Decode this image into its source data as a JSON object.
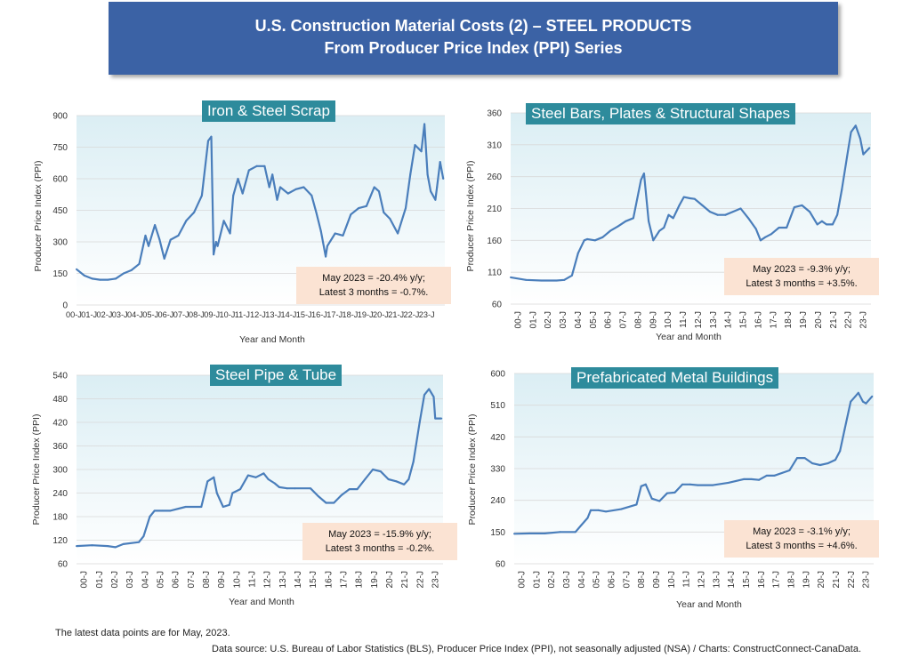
{
  "header": {
    "title_line1": "U.S. Construction Material Costs (2) – STEEL PRODUCTS",
    "title_line2": "From Producer Price Index (PPI) Series"
  },
  "footer": {
    "latest": "The latest data points are for May, 2023.",
    "source": "Data source: U.S. Bureau of Labor Statistics (BLS), Producer Price Index (PPI), not seasonally adjusted (NSA) / Charts: ConstructConnect-CanaData."
  },
  "colors": {
    "line": "#4a7ebb",
    "title_bg": "#2e8b9c",
    "note_bg": "#fbe3d3",
    "banner_bg": "#3b62a5"
  },
  "chart_data": [
    {
      "type": "line",
      "title": "Iron & Steel Scrap",
      "xlabel": "Year and Month",
      "ylabel": "Producer Price Index (PPI)",
      "ylim": [
        0,
        900
      ],
      "yticks": [
        "0",
        "150",
        "300",
        "450",
        "600",
        "750",
        "900"
      ],
      "xtick_labels": [
        "00-J",
        "01-J",
        "02-J",
        "03-J",
        "04-J",
        "05-J",
        "06-J",
        "07-J",
        "08-J",
        "09-J",
        "10-J",
        "11-J",
        "12-J",
        "13-J",
        "14-J",
        "15-J",
        "16-J",
        "17-J",
        "18-J",
        "19-J",
        "20-J",
        "21-J",
        "22-J",
        "23-J"
      ],
      "xtick_rotated": false,
      "note_line1": "May 2023 = -20.4% y/y;",
      "note_line2": "Latest 3 months = -0.7%.",
      "x": [
        2000,
        2000.5,
        2001,
        2001.5,
        2002,
        2002.5,
        2003,
        2003.5,
        2004,
        2004.4,
        2004.6,
        2005,
        2005.3,
        2005.6,
        2006,
        2006.5,
        2007,
        2007.5,
        2008,
        2008.4,
        2008.6,
        2008.75,
        2008.9,
        2009,
        2009.4,
        2009.8,
        2010,
        2010.3,
        2010.6,
        2011,
        2011.5,
        2012,
        2012.3,
        2012.5,
        2012.8,
        2013,
        2013.5,
        2014,
        2014.5,
        2015,
        2015.3,
        2015.6,
        2015.9,
        2016,
        2016.5,
        2017,
        2017.5,
        2018,
        2018.5,
        2019,
        2019.3,
        2019.6,
        2020,
        2020.5,
        2021,
        2021.3,
        2021.6,
        2022,
        2022.2,
        2022.4,
        2022.6,
        2022.9,
        2023,
        2023.2,
        2023.4
      ],
      "y": [
        170,
        140,
        125,
        120,
        120,
        125,
        150,
        165,
        195,
        330,
        280,
        380,
        310,
        220,
        310,
        330,
        400,
        440,
        520,
        780,
        800,
        240,
        300,
        280,
        400,
        340,
        520,
        600,
        530,
        640,
        660,
        660,
        560,
        620,
        500,
        560,
        530,
        550,
        560,
        520,
        440,
        350,
        230,
        280,
        340,
        330,
        430,
        460,
        470,
        560,
        540,
        440,
        410,
        340,
        460,
        620,
        760,
        730,
        860,
        620,
        540,
        500,
        560,
        680,
        600
      ]
    },
    {
      "type": "line",
      "title": "Steel Bars, Plates & Structural Shapes",
      "xlabel": "Year and Month",
      "ylabel": "Producer Price Index (PPI)",
      "ylim": [
        60,
        360
      ],
      "yticks": [
        "60",
        "110",
        "160",
        "210",
        "260",
        "310",
        "360"
      ],
      "xtick_labels": [
        "00-J",
        "01-J",
        "02-J",
        "03-J",
        "04-J",
        "05-J",
        "06-J",
        "07-J",
        "08-J",
        "09-J",
        "10-J",
        "11-J",
        "12-J",
        "13-J",
        "14-J",
        "15-J",
        "16-J",
        "17-J",
        "18-J",
        "19-J",
        "20-J",
        "21-J",
        "22-J",
        "23-J"
      ],
      "xtick_rotated": true,
      "note_line1": "May 2023 = -9.3% y/y;",
      "note_line2": "Latest 3 months = +3.5%.",
      "x": [
        2000,
        2001,
        2002,
        2003,
        2003.5,
        2004,
        2004.4,
        2004.8,
        2005,
        2005.5,
        2006,
        2006.5,
        2007,
        2007.5,
        2008,
        2008.5,
        2008.7,
        2009,
        2009.3,
        2009.7,
        2010,
        2010.3,
        2010.6,
        2011,
        2011.3,
        2011.7,
        2012,
        2012.5,
        2013,
        2013.5,
        2014,
        2014.5,
        2015,
        2015.5,
        2016,
        2016.3,
        2016.6,
        2017,
        2017.5,
        2018,
        2018.5,
        2019,
        2019.5,
        2020,
        2020.3,
        2020.6,
        2021,
        2021.3,
        2021.6,
        2022,
        2022.2,
        2022.5,
        2022.8,
        2023,
        2023.4
      ],
      "y": [
        102,
        98,
        97,
        97,
        98,
        105,
        140,
        160,
        162,
        160,
        165,
        175,
        182,
        190,
        195,
        255,
        265,
        190,
        160,
        175,
        180,
        200,
        195,
        215,
        228,
        226,
        225,
        215,
        205,
        200,
        200,
        205,
        210,
        195,
        178,
        160,
        165,
        170,
        180,
        180,
        212,
        215,
        205,
        185,
        190,
        185,
        185,
        200,
        240,
        300,
        330,
        340,
        320,
        295,
        305
      ]
    },
    {
      "type": "line",
      "title": "Steel Pipe & Tube",
      "xlabel": "Year and Month",
      "ylabel": "Producer Price Index (PPI)",
      "ylim": [
        60,
        540
      ],
      "yticks": [
        "60",
        "120",
        "180",
        "240",
        "300",
        "360",
        "420",
        "480",
        "540"
      ],
      "xtick_labels": [
        "00-J",
        "01-J",
        "02-J",
        "03-J",
        "04-J",
        "05-J",
        "06-J",
        "07-J",
        "08-J",
        "09-J",
        "10-J",
        "11-J",
        "12-J",
        "13-J",
        "14-J",
        "15-J",
        "16-J",
        "17-J",
        "18-J",
        "19-J",
        "20-J",
        "21-J",
        "22-J",
        "23-J"
      ],
      "xtick_rotated": true,
      "note_line1": "May 2023 = -15.9% y/y;",
      "note_line2": "Latest 3 months = -0.2%.",
      "x": [
        2000,
        2001,
        2002,
        2002.5,
        2003,
        2004,
        2004.3,
        2004.7,
        2005,
        2005.5,
        2006,
        2007,
        2008,
        2008.4,
        2008.8,
        2009,
        2009.4,
        2009.8,
        2010,
        2010.5,
        2011,
        2011.5,
        2012,
        2012.3,
        2012.7,
        2013,
        2013.5,
        2014,
        2015,
        2015.5,
        2016,
        2016.5,
        2017,
        2017.5,
        2018,
        2018.5,
        2019,
        2019.5,
        2020,
        2020.5,
        2021,
        2021.3,
        2021.6,
        2022,
        2022.3,
        2022.6,
        2022.9,
        2023,
        2023.4
      ],
      "y": [
        105,
        107,
        105,
        102,
        110,
        115,
        130,
        180,
        195,
        195,
        195,
        205,
        205,
        270,
        280,
        240,
        205,
        210,
        240,
        250,
        285,
        280,
        290,
        275,
        265,
        255,
        252,
        252,
        252,
        232,
        215,
        215,
        235,
        250,
        250,
        275,
        300,
        295,
        275,
        270,
        262,
        275,
        320,
        420,
        490,
        505,
        485,
        430,
        430
      ]
    },
    {
      "type": "line",
      "title": "Prefabricated Metal Buildings",
      "xlabel": "Year and Month",
      "ylabel": "Producer Price Index (PPI)",
      "ylim": [
        60,
        600
      ],
      "yticks": [
        "60",
        "150",
        "240",
        "330",
        "420",
        "510",
        "600"
      ],
      "xtick_labels": [
        "00-J",
        "01-J",
        "02-J",
        "03-J",
        "04-J",
        "05-J",
        "06-J",
        "07-J",
        "08-J",
        "09-J",
        "10-J",
        "11-J",
        "12-J",
        "13-J",
        "14-J",
        "15-J",
        "16-J",
        "17-J",
        "18-J",
        "19-J",
        "20-J",
        "21-J",
        "22-J",
        "23-J"
      ],
      "xtick_rotated": true,
      "note_line1": "May 2023 = -3.1% y/y;",
      "note_line2": "Latest 3 months = +4.6%.",
      "x": [
        2000,
        2001,
        2002,
        2003,
        2004,
        2004.4,
        2004.8,
        2005,
        2005.5,
        2006,
        2007,
        2008,
        2008.3,
        2008.6,
        2009,
        2009.5,
        2010,
        2010.5,
        2011,
        2011.5,
        2012,
        2012.5,
        2013,
        2014,
        2014.5,
        2015,
        2015.5,
        2016,
        2016.5,
        2017,
        2018,
        2018.5,
        2019,
        2019.5,
        2020,
        2020.5,
        2021,
        2021.3,
        2021.6,
        2022,
        2022.3,
        2022.5,
        2022.8,
        2023,
        2023.4
      ],
      "y": [
        145,
        146,
        146,
        150,
        150,
        170,
        190,
        212,
        212,
        208,
        215,
        228,
        280,
        285,
        245,
        238,
        260,
        262,
        285,
        285,
        283,
        283,
        283,
        290,
        295,
        300,
        300,
        298,
        310,
        310,
        325,
        360,
        360,
        345,
        340,
        345,
        355,
        380,
        440,
        520,
        535,
        545,
        520,
        515,
        535
      ]
    }
  ]
}
